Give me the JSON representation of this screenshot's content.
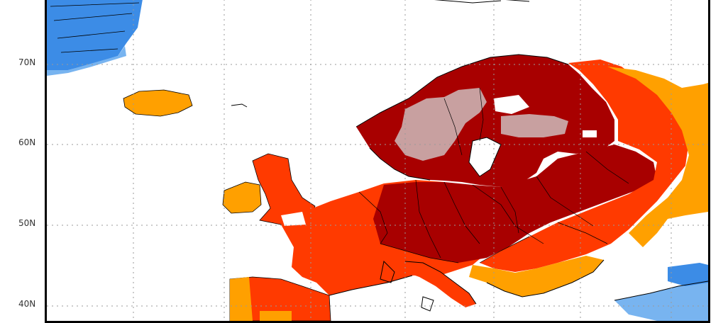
{
  "map": {
    "latitude_labels": [
      "70N",
      "60N",
      "50N",
      "40N"
    ],
    "colors": {
      "ocean": "#ffffff",
      "gridline": "#9a9a9a",
      "coastline": "#000000",
      "anomaly_extreme": "#a80000",
      "anomaly_very_high": "#ff3a00",
      "anomaly_high": "#ff6a00",
      "anomaly_moderate": "#ffa000",
      "anomaly_top_category": "#c8a0a0",
      "anomaly_negative": "#3c8ce6",
      "anomaly_negative_light": "#78b4f0"
    }
  }
}
